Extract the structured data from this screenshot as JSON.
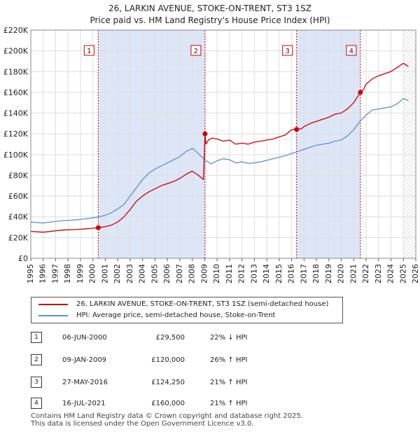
{
  "title_line1": "26, LARKIN AVENUE, STOKE-ON-TRENT, ST3 1SZ",
  "title_line2": "Price paid vs. HM Land Registry's House Price Index (HPI)",
  "colors": {
    "price": "#cc0000",
    "hpi": "#5b8fd4",
    "shade": "#dde6f7",
    "grid": "#dddddd"
  },
  "legend": {
    "price_label": "26, LARKIN AVENUE, STOKE-ON-TRENT, ST3 1SZ (semi-detached house)",
    "hpi_label": "HPI: Average price, semi-detached house, Stoke-on-Trent"
  },
  "transactions": [
    {
      "num": "1",
      "date": "06-JUN-2000",
      "price": "£29,500",
      "hpi": "22% ↓ HPI"
    },
    {
      "num": "2",
      "date": "09-JAN-2009",
      "price": "£120,000",
      "hpi": "26% ↑ HPI"
    },
    {
      "num": "3",
      "date": "27-MAY-2016",
      "price": "£124,250",
      "hpi": "21% ↑ HPI"
    },
    {
      "num": "4",
      "date": "16-JUL-2021",
      "price": "£160,000",
      "hpi": "21% ↑ HPI"
    }
  ],
  "footer_line1": "Contains HM Land Registry data © Crown copyright and database right 2025.",
  "footer_line2": "This data is licensed under the Open Government Licence v3.0.",
  "chart_data": {
    "type": "line",
    "title": "26, LARKIN AVENUE, STOKE-ON-TRENT, ST3 1SZ — Price paid vs. HM Land Registry's House Price Index (HPI)",
    "xlabel": "",
    "ylabel": "",
    "xlim": [
      1995,
      2026
    ],
    "ylim": [
      0,
      220000
    ],
    "x_ticks": [
      1995,
      1996,
      1997,
      1998,
      1999,
      2000,
      2001,
      2002,
      2003,
      2004,
      2005,
      2006,
      2007,
      2008,
      2009,
      2010,
      2011,
      2012,
      2013,
      2014,
      2015,
      2016,
      2017,
      2018,
      2019,
      2020,
      2021,
      2022,
      2023,
      2024,
      2025,
      2026
    ],
    "y_ticks": [
      {
        "value": 0,
        "label": "£0"
      },
      {
        "value": 20000,
        "label": "£20K"
      },
      {
        "value": 40000,
        "label": "£40K"
      },
      {
        "value": 60000,
        "label": "£60K"
      },
      {
        "value": 80000,
        "label": "£80K"
      },
      {
        "value": 100000,
        "label": "£100K"
      },
      {
        "value": 120000,
        "label": "£120K"
      },
      {
        "value": 140000,
        "label": "£140K"
      },
      {
        "value": 160000,
        "label": "£160K"
      },
      {
        "value": 180000,
        "label": "£180K"
      },
      {
        "value": 200000,
        "label": "£200K"
      },
      {
        "value": 220000,
        "label": "£220K"
      }
    ],
    "grid": true,
    "shaded_periods": [
      [
        2000.43,
        2009.03
      ],
      [
        2016.4,
        2021.54
      ]
    ],
    "hatched_after": 2025.0,
    "series": [
      {
        "name": "26, LARKIN AVENUE, STOKE-ON-TRENT, ST3 1SZ (semi-detached house)",
        "x": [
          1995,
          1995.5,
          1996,
          1996.5,
          1997,
          1997.5,
          1998,
          1998.5,
          1999,
          1999.5,
          2000,
          2000.43,
          2001,
          2001.5,
          2002,
          2002.5,
          2003,
          2003.5,
          2004,
          2004.5,
          2005,
          2005.5,
          2006,
          2006.5,
          2007,
          2007.5,
          2008,
          2008.5,
          2008.9,
          2009.03,
          2009.1,
          2009.3,
          2009.6,
          2010,
          2010.5,
          2011,
          2011.5,
          2012,
          2012.5,
          2013,
          2013.5,
          2014,
          2014.5,
          2015,
          2015.5,
          2016,
          2016.4,
          2016.8,
          2017,
          2017.5,
          2018,
          2018.5,
          2019,
          2019.5,
          2020,
          2020.5,
          2021,
          2021.54,
          2021.8,
          2022,
          2022.5,
          2023,
          2023.5,
          2024,
          2024.5,
          2025,
          2025.4
        ],
        "values": [
          26000,
          25500,
          25200,
          25800,
          26500,
          27200,
          27500,
          27700,
          28000,
          28500,
          29000,
          29500,
          30500,
          32000,
          35000,
          40000,
          47000,
          55000,
          60000,
          64000,
          67000,
          70000,
          72000,
          74000,
          77000,
          81000,
          84000,
          80000,
          76000,
          120000,
          110000,
          114000,
          116000,
          115000,
          113000,
          114000,
          110000,
          111000,
          110000,
          112000,
          113000,
          114000,
          115000,
          117000,
          119000,
          124000,
          124250,
          125000,
          127000,
          130000,
          132000,
          134000,
          136000,
          139000,
          140000,
          144000,
          150000,
          160000,
          163000,
          168000,
          173000,
          176000,
          178000,
          180000,
          184000,
          188000,
          185000
        ]
      },
      {
        "name": "HPI: Average price, semi-detached house, Stoke-on-Trent",
        "x": [
          1995,
          1995.5,
          1996,
          1996.5,
          1997,
          1997.5,
          1998,
          1998.5,
          1999,
          1999.5,
          2000,
          2000.5,
          2001,
          2001.5,
          2002,
          2002.5,
          2003,
          2003.5,
          2004,
          2004.5,
          2005,
          2005.5,
          2006,
          2006.5,
          2007,
          2007.5,
          2008,
          2008.5,
          2009,
          2009.5,
          2010,
          2010.5,
          2011,
          2011.5,
          2012,
          2012.5,
          2013,
          2013.5,
          2014,
          2014.5,
          2015,
          2015.5,
          2016,
          2016.5,
          2017,
          2017.5,
          2018,
          2018.5,
          2019,
          2019.5,
          2020,
          2020.5,
          2021,
          2021.5,
          2022,
          2022.5,
          2023,
          2023.5,
          2024,
          2024.5,
          2025,
          2025.4
        ],
        "values": [
          35000,
          34500,
          34000,
          34800,
          35500,
          36200,
          36500,
          37000,
          37500,
          38200,
          39000,
          40000,
          41500,
          44000,
          47500,
          52000,
          60000,
          68000,
          76000,
          82000,
          86000,
          89000,
          92000,
          95000,
          98000,
          103000,
          106000,
          101000,
          95000,
          91000,
          94000,
          96000,
          95000,
          92000,
          93000,
          91500,
          92000,
          93000,
          94500,
          96000,
          97500,
          99000,
          101000,
          103000,
          105000,
          107000,
          109000,
          110000,
          111000,
          113000,
          114000,
          118000,
          124000,
          132000,
          138000,
          143000,
          144000,
          145000,
          146000,
          149000,
          154000,
          152000
        ]
      }
    ],
    "markers": [
      {
        "label": "1",
        "x": 2000.43,
        "y": 29500
      },
      {
        "label": "2",
        "x": 2009.03,
        "y": 120000
      },
      {
        "label": "3",
        "x": 2016.4,
        "y": 124250
      },
      {
        "label": "4",
        "x": 2021.54,
        "y": 160000
      }
    ]
  }
}
